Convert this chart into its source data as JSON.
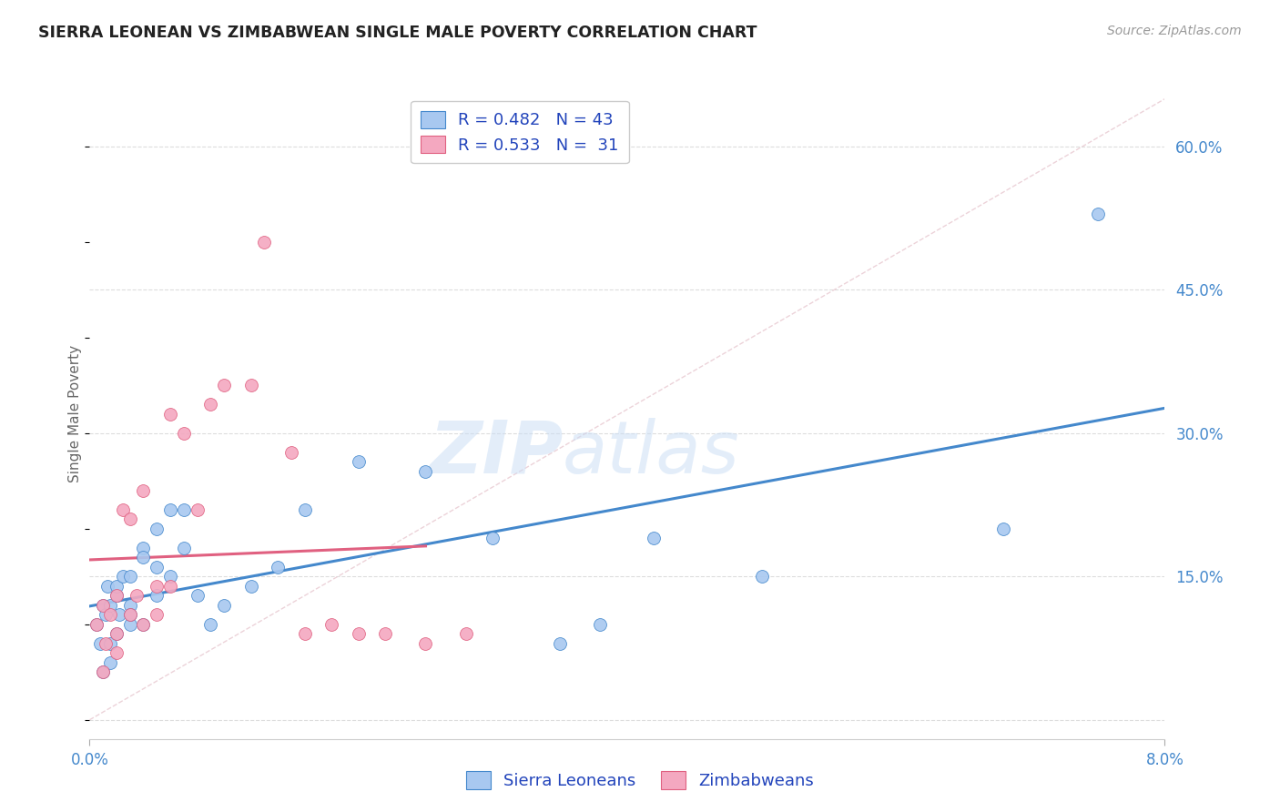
{
  "title": "SIERRA LEONEAN VS ZIMBABWEAN SINGLE MALE POVERTY CORRELATION CHART",
  "source": "Source: ZipAtlas.com",
  "ylabel": "Single Male Poverty",
  "xlim": [
    0.0,
    0.08
  ],
  "ylim": [
    -0.02,
    0.66
  ],
  "yticks_right": [
    0.0,
    0.15,
    0.3,
    0.45,
    0.6
  ],
  "ytick_labels_right": [
    "",
    "15.0%",
    "30.0%",
    "45.0%",
    "60.0%"
  ],
  "sierra_R": 0.482,
  "sierra_N": 43,
  "zimb_R": 0.533,
  "zimb_N": 31,
  "sierra_color": "#a8c8f0",
  "zimb_color": "#f4a8c0",
  "sierra_line_color": "#4488cc",
  "zimb_line_color": "#e06080",
  "ref_line_color": "#cccccc",
  "watermark_zip": "ZIP",
  "watermark_atlas": "atlas",
  "watermark_color_zip": "#c8ddf0",
  "watermark_color_atlas": "#c8ddf0",
  "legend_text_color": "#2244bb",
  "background_color": "#ffffff",
  "sierra_x": [
    0.0005,
    0.0008,
    0.001,
    0.001,
    0.0012,
    0.0013,
    0.0015,
    0.0015,
    0.0015,
    0.002,
    0.002,
    0.002,
    0.0022,
    0.0025,
    0.003,
    0.003,
    0.003,
    0.003,
    0.004,
    0.004,
    0.004,
    0.005,
    0.005,
    0.005,
    0.006,
    0.006,
    0.007,
    0.007,
    0.008,
    0.009,
    0.01,
    0.012,
    0.014,
    0.016,
    0.02,
    0.025,
    0.03,
    0.035,
    0.038,
    0.042,
    0.05,
    0.068,
    0.075
  ],
  "sierra_y": [
    0.1,
    0.08,
    0.12,
    0.05,
    0.11,
    0.14,
    0.12,
    0.06,
    0.08,
    0.13,
    0.14,
    0.09,
    0.11,
    0.15,
    0.12,
    0.1,
    0.15,
    0.11,
    0.18,
    0.17,
    0.1,
    0.2,
    0.13,
    0.16,
    0.22,
    0.15,
    0.18,
    0.22,
    0.13,
    0.1,
    0.12,
    0.14,
    0.16,
    0.22,
    0.27,
    0.26,
    0.19,
    0.08,
    0.1,
    0.19,
    0.15,
    0.2,
    0.53
  ],
  "zimb_x": [
    0.0005,
    0.001,
    0.001,
    0.0012,
    0.0015,
    0.002,
    0.002,
    0.002,
    0.0025,
    0.003,
    0.003,
    0.0035,
    0.004,
    0.004,
    0.005,
    0.005,
    0.006,
    0.006,
    0.007,
    0.008,
    0.009,
    0.01,
    0.012,
    0.013,
    0.015,
    0.016,
    0.018,
    0.02,
    0.022,
    0.025,
    0.028
  ],
  "zimb_y": [
    0.1,
    0.12,
    0.05,
    0.08,
    0.11,
    0.13,
    0.09,
    0.07,
    0.22,
    0.21,
    0.11,
    0.13,
    0.24,
    0.1,
    0.11,
    0.14,
    0.14,
    0.32,
    0.3,
    0.22,
    0.33,
    0.35,
    0.35,
    0.5,
    0.28,
    0.09,
    0.1,
    0.09,
    0.09,
    0.08,
    0.09
  ]
}
